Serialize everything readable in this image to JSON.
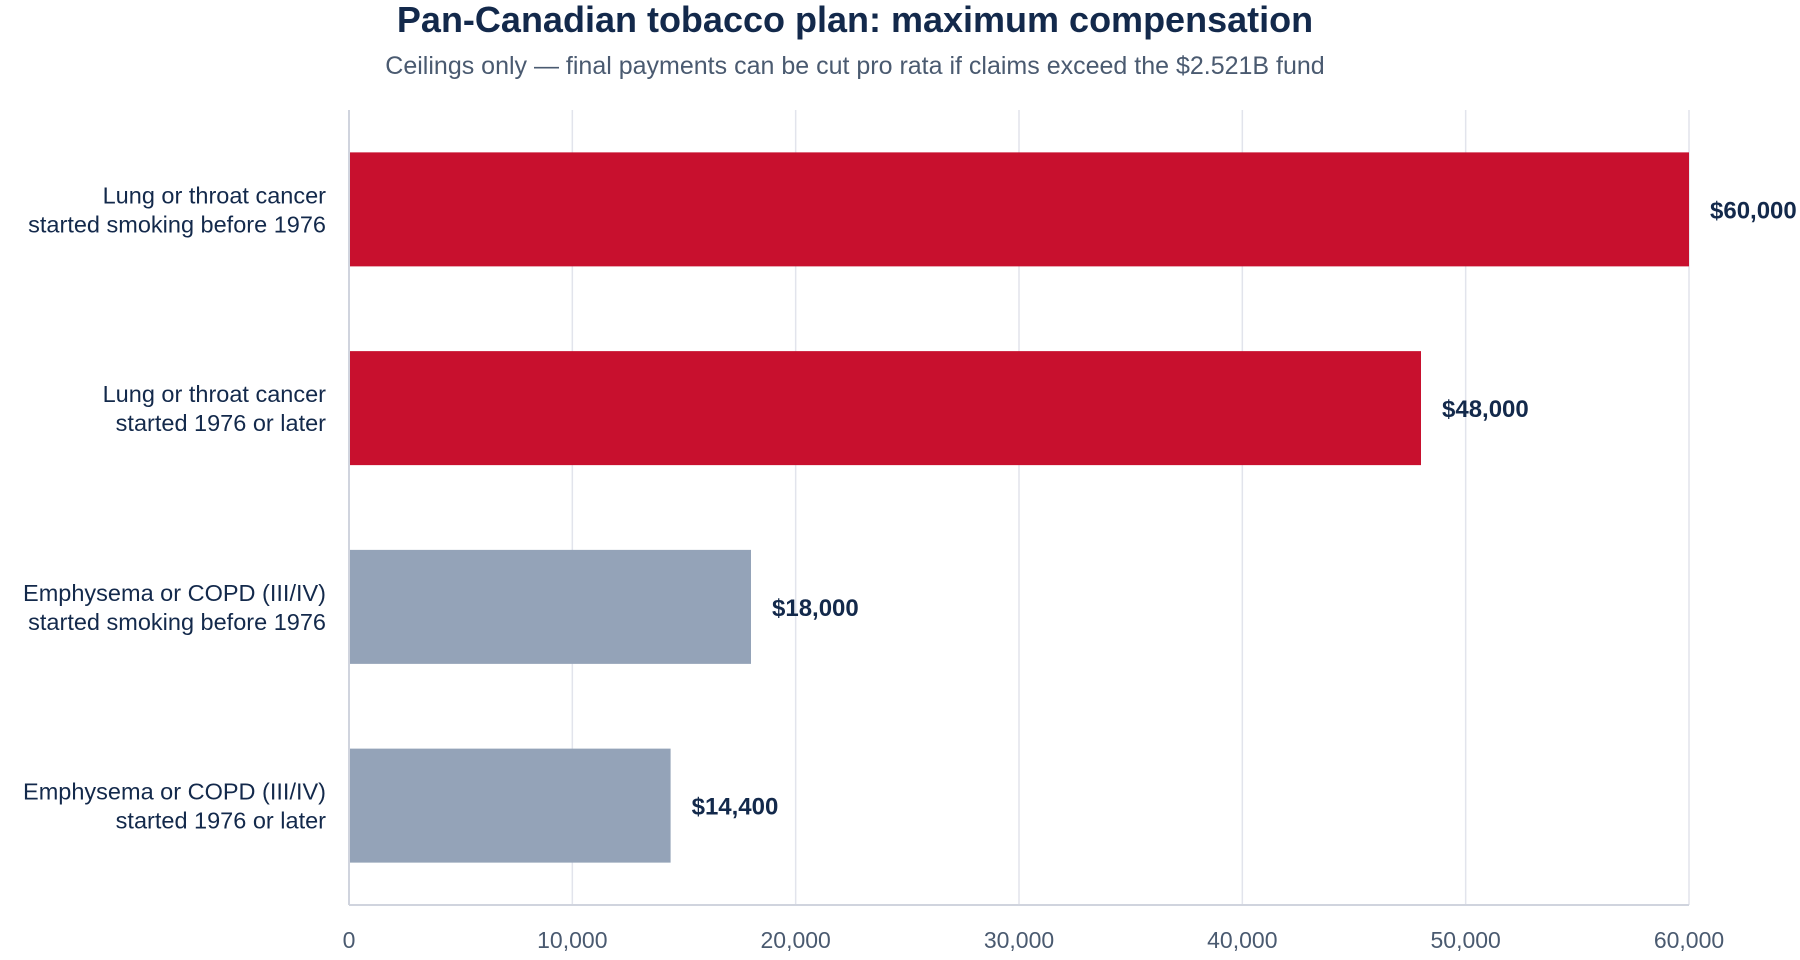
{
  "chart_data": {
    "type": "bar",
    "orientation": "horizontal",
    "title": "Pan-Canadian tobacco plan: maximum compensation",
    "subtitle": "Ceilings only — final payments can be cut pro rata if claims exceed the $2.521B fund",
    "categories": [
      [
        "Lung or throat cancer",
        "started smoking before 1976"
      ],
      [
        "Lung or throat cancer",
        "started 1976 or later"
      ],
      [
        "Emphysema or COPD (III/IV)",
        "started smoking before 1976"
      ],
      [
        "Emphysema or COPD (III/IV)",
        "started 1976 or later"
      ]
    ],
    "values": [
      60000,
      48000,
      18000,
      14400
    ],
    "data_labels": [
      "$60,000",
      "$48,000",
      "$18,000",
      "$14,400"
    ],
    "bar_colors": [
      "#c8102e",
      "#c8102e",
      "#94a3b8",
      "#94a3b8"
    ],
    "xlabel": "",
    "ylabel": "",
    "xlim": [
      0,
      60000
    ],
    "x_ticks": [
      0,
      10000,
      20000,
      30000,
      40000,
      50000,
      60000
    ],
    "x_tick_labels": [
      "0",
      "10,000",
      "20,000",
      "30,000",
      "40,000",
      "50,000",
      "60,000"
    ],
    "grid": true,
    "legend": "none"
  }
}
